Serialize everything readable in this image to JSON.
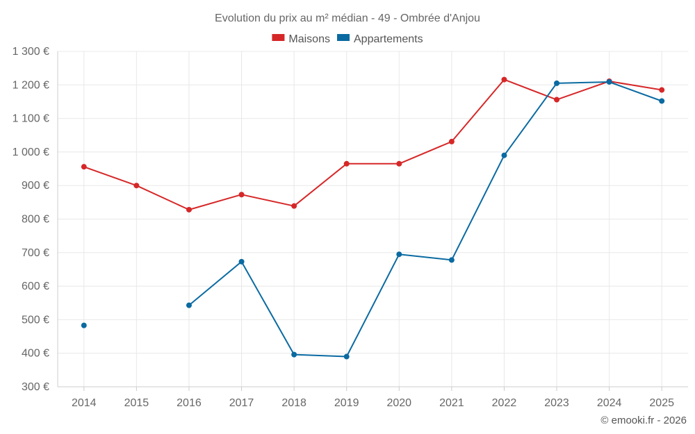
{
  "chart_data": {
    "type": "line",
    "title": "Evolution du prix au m² médian - 49 - Ombrée d'Anjou",
    "categories": [
      "2014",
      "2015",
      "2016",
      "2017",
      "2018",
      "2019",
      "2020",
      "2021",
      "2022",
      "2023",
      "2024",
      "2025"
    ],
    "series": [
      {
        "name": "Maisons",
        "color": "#d62728",
        "values": [
          956,
          900,
          828,
          873,
          839,
          965,
          965,
          1031,
          1216,
          1156,
          1211,
          1185
        ]
      },
      {
        "name": "Appartements",
        "color": "#0a6aa1",
        "values": [
          483,
          null,
          543,
          673,
          396,
          390,
          695,
          678,
          990,
          1205,
          1209,
          1152
        ]
      }
    ],
    "ylim": [
      300,
      1300
    ],
    "yticks": [
      300,
      400,
      500,
      600,
      700,
      800,
      900,
      1000,
      1100,
      1200,
      1300
    ],
    "ytick_labels": [
      "300 €",
      "400 €",
      "500 €",
      "600 €",
      "700 €",
      "800 €",
      "900 €",
      "1 000 €",
      "1 100 €",
      "1 200 €",
      "1 300 €"
    ],
    "xlabel": "",
    "ylabel": "",
    "grid": true,
    "legend_position": "top-center"
  },
  "credit": "© emooki.fr - 2026"
}
